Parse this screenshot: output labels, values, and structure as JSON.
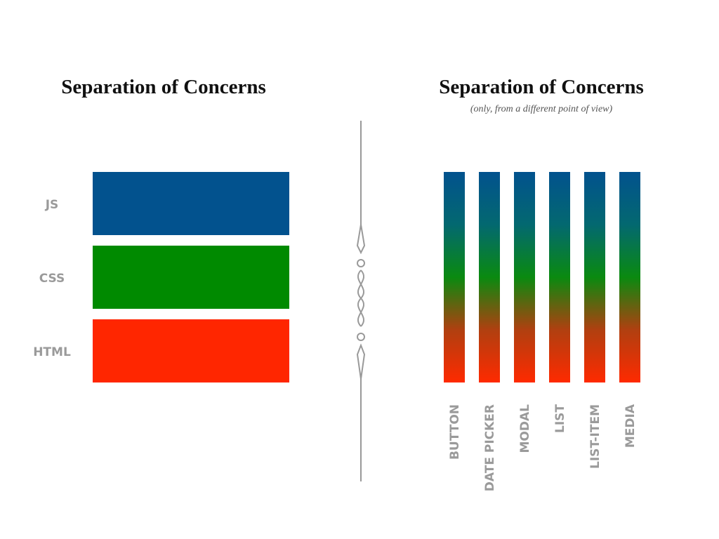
{
  "left": {
    "title": "Separation of Concerns",
    "layers": [
      "JS",
      "CSS",
      "HTML"
    ]
  },
  "right": {
    "title": "Separation of Concerns",
    "subtitle": "(only, from a different point of view)",
    "columns": [
      "BUTTON",
      "DATE PICKER",
      "MODAL",
      "LIST",
      "LIST-ITEM",
      "MEDIA"
    ]
  }
}
